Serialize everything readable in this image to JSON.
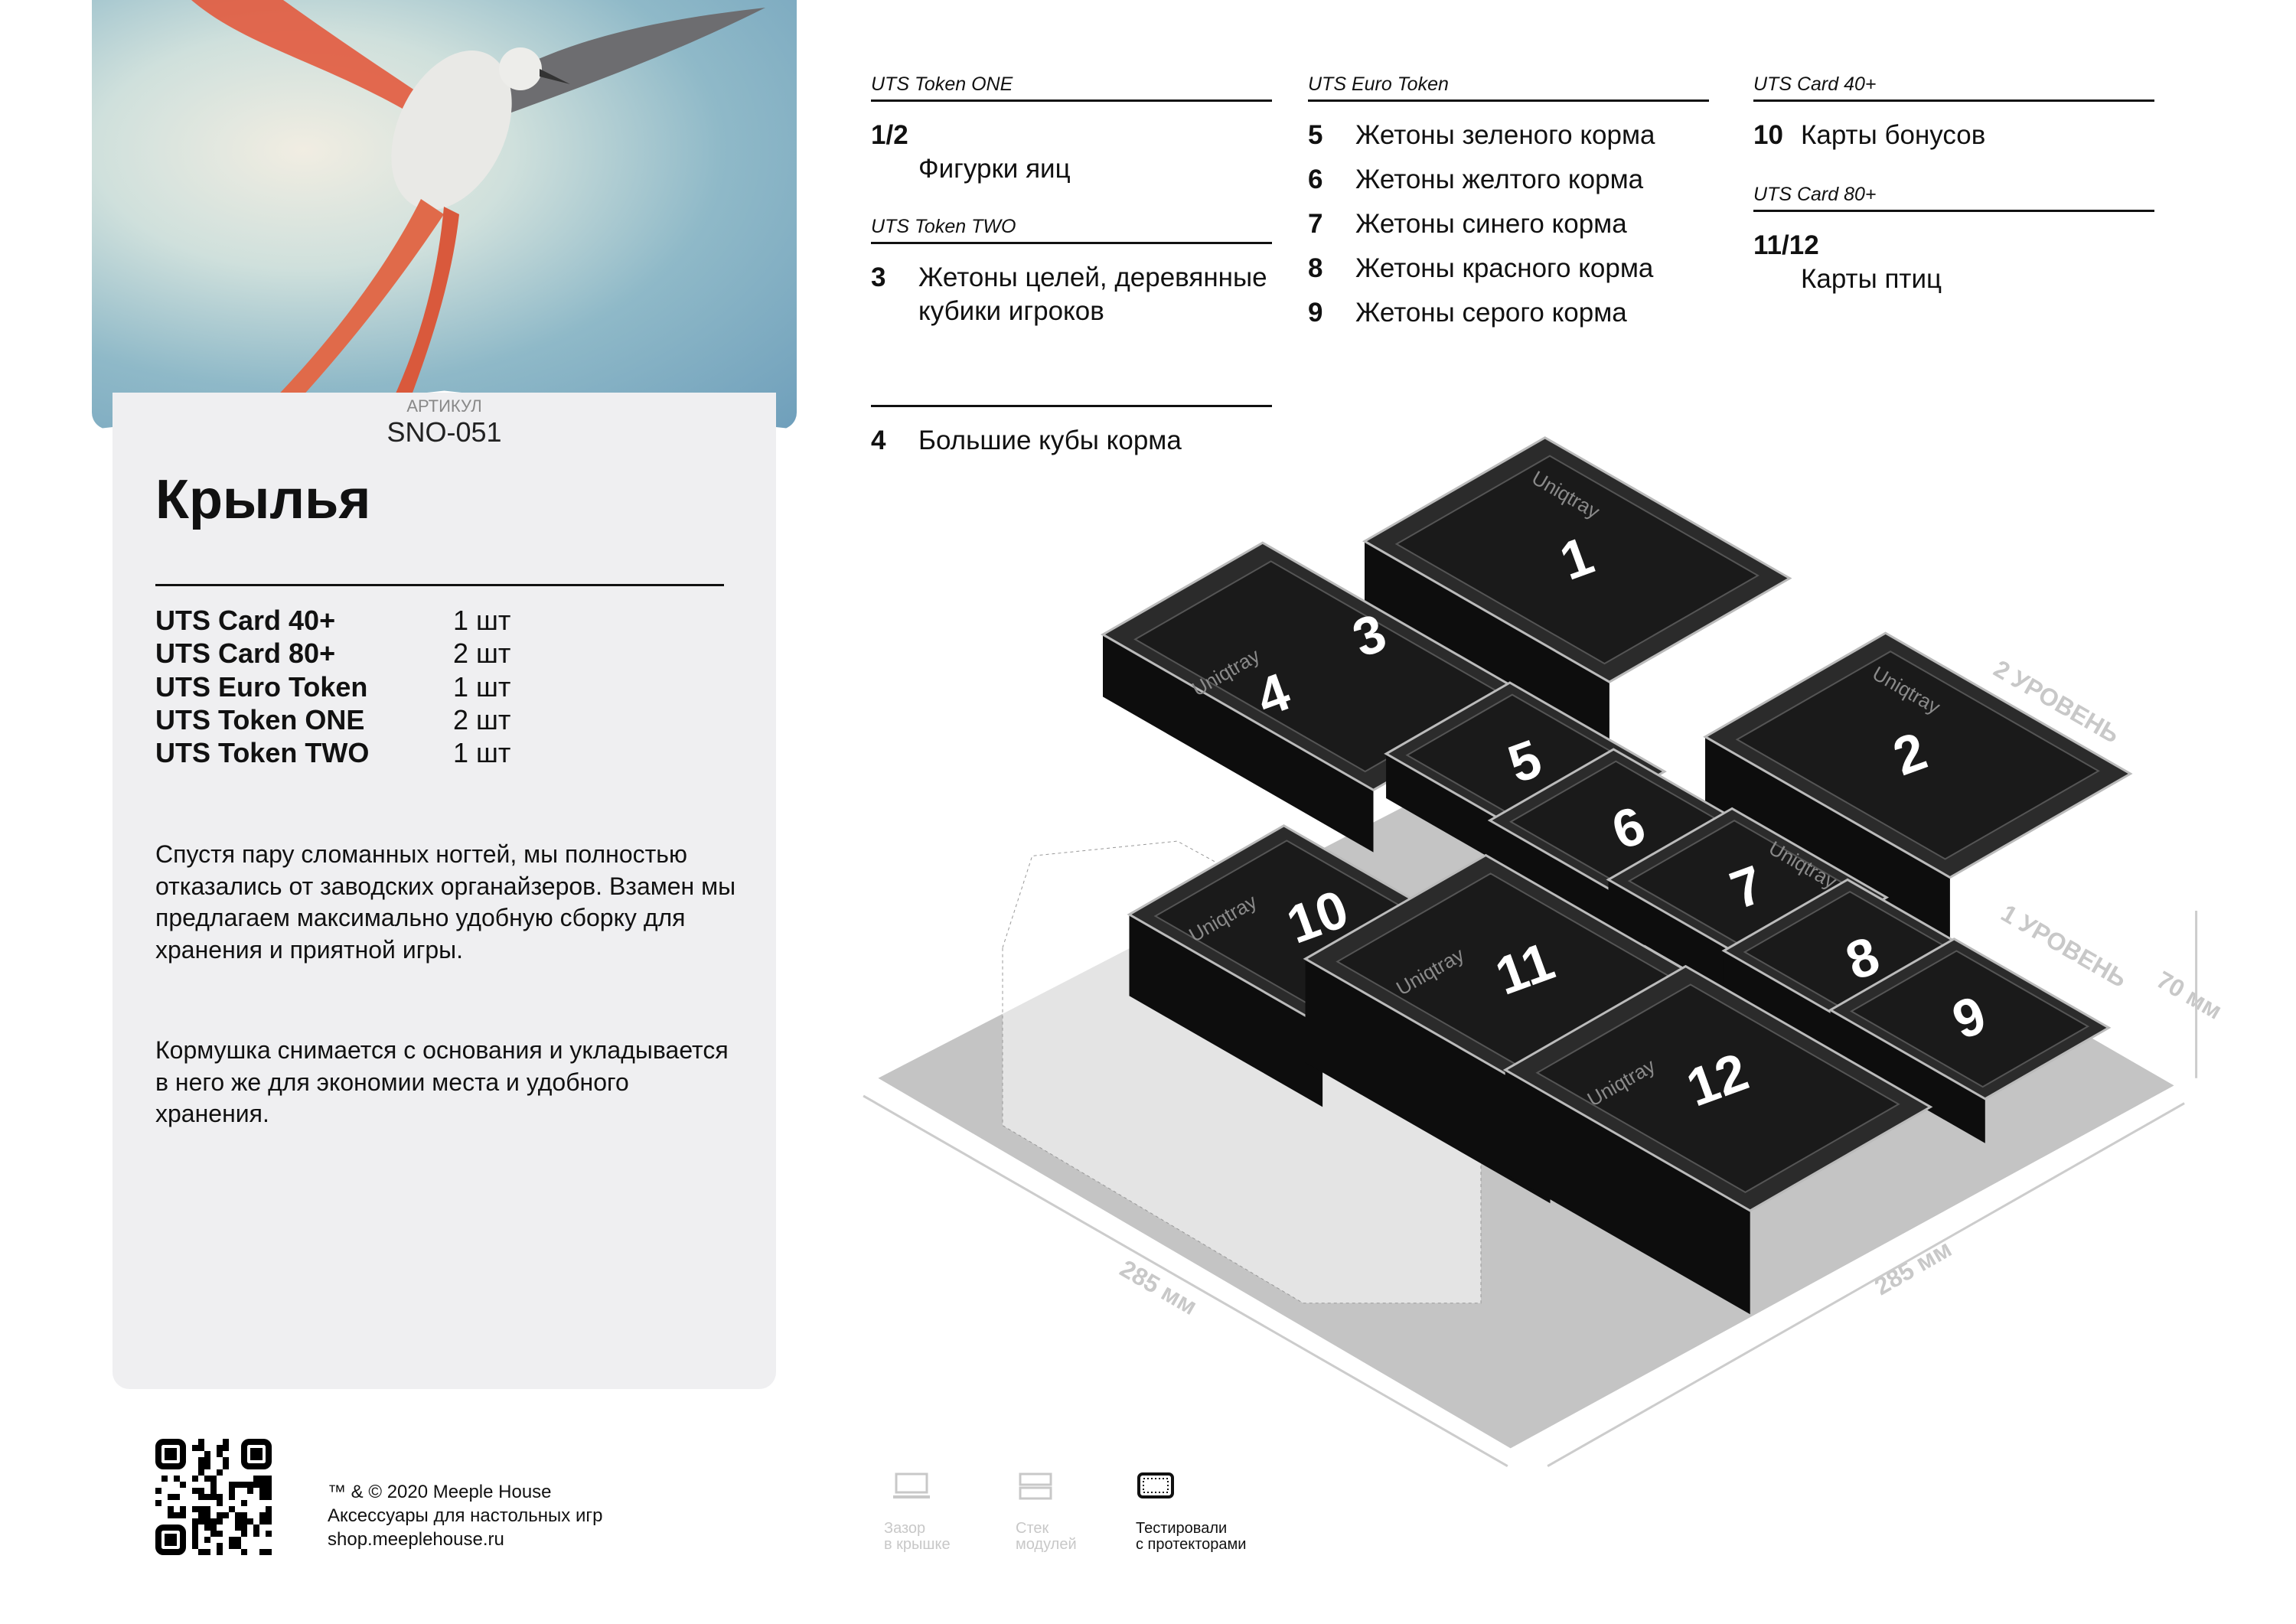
{
  "product": {
    "article_label": "АРТИКУЛ",
    "article": "SNO-051",
    "title": "Крылья",
    "specs": [
      {
        "name": "UTS Card 40+",
        "qty": "1 шт"
      },
      {
        "name": "UTS Card 80+",
        "qty": "2 шт"
      },
      {
        "name": "UTS Euro Token",
        "qty": "1 шт"
      },
      {
        "name": "UTS Token ONE",
        "qty": "2 шт"
      },
      {
        "name": "UTS Token TWO",
        "qty": "1 шт"
      }
    ],
    "paragraphs": [
      "Спустя пару сломанных ногтей, мы полностью отказались от заводских органайзеров. Взамен мы предлагаем максимально удобную сборку для хранения и приятной игры.",
      "Кормушка снимается с основания и укладывается в него же для экономии места и удобного хранения."
    ]
  },
  "columns": [
    {
      "groups": [
        {
          "header": "UTS Token ONE",
          "items": [
            {
              "num": "1/2",
              "text": "Фигурки яиц",
              "stacked": true
            }
          ]
        },
        {
          "header": "UTS Token TWO",
          "items": [
            {
              "num": "3",
              "text": "Жетоны целей, деревянные кубики игроков"
            }
          ]
        },
        {
          "header": "",
          "items": [
            {
              "num": "4",
              "text": "Большие кубы корма"
            }
          ]
        }
      ]
    },
    {
      "groups": [
        {
          "header": "UTS Euro Token",
          "items": [
            {
              "num": "5",
              "text": "Жетоны зеленого корма"
            },
            {
              "num": "6",
              "text": "Жетоны желтого корма"
            },
            {
              "num": "7",
              "text": "Жетоны синего корма"
            },
            {
              "num": "8",
              "text": "Жетоны красного корма"
            },
            {
              "num": "9",
              "text": "Жетоны серого корма"
            }
          ]
        }
      ]
    },
    {
      "groups": [
        {
          "header": "UTS Card 40+",
          "items": [
            {
              "num": "10",
              "text": "Карты бонусов"
            }
          ]
        },
        {
          "header": "UTS Card 80+",
          "items": [
            {
              "num": "11/12",
              "text": "Карты птиц",
              "stacked": true
            }
          ]
        }
      ]
    }
  ],
  "diagram": {
    "labels": [
      "1",
      "2",
      "3",
      "4",
      "5",
      "6",
      "7",
      "8",
      "9",
      "10",
      "11",
      "12"
    ],
    "level2": "2 УРОВЕНЬ",
    "level1": "1 УРОВЕНЬ",
    "height": "70 мм",
    "width_left": "285 мм",
    "width_right": "285 мм",
    "brand_mark": "Uniqtray",
    "colors": {
      "box": "#1a1a1a",
      "box_top": "#2b2b2b",
      "base": "#c4c4c4"
    }
  },
  "footer": {
    "lines": [
      "™ & © 2020 Meeple House",
      "Аксессуары для настольных игр",
      "shop.meeplehouse.ru"
    ],
    "features": [
      {
        "icon": "lid-gap-icon",
        "label1": "Зазор",
        "label2": "в крышке",
        "active": false
      },
      {
        "icon": "module-stack-icon",
        "label1": "Стек",
        "label2": "модулей",
        "active": false
      },
      {
        "icon": "sleeve-tested-icon",
        "label1": "Тестировали",
        "label2": "с протекторами",
        "active": true
      }
    ]
  }
}
